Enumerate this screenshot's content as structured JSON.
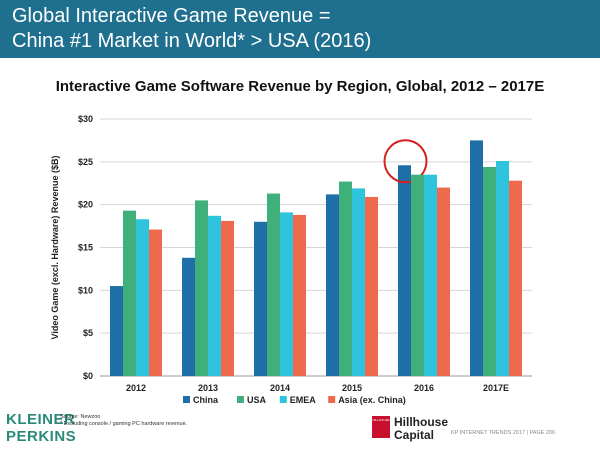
{
  "header": {
    "line1": "Global Interactive Game Revenue =",
    "line2": "China #1 Market in World* > USA (2016)"
  },
  "chart_data": {
    "type": "bar",
    "title": "Interactive Game Software Revenue by Region, Global, 2012 – 2017E",
    "xlabel": "",
    "ylabel": "Video Game (excl. Hardware) Revenue ($B)",
    "categories": [
      "2012",
      "2013",
      "2014",
      "2015",
      "2016",
      "2017E"
    ],
    "ylim": [
      0,
      30
    ],
    "yticks": [
      0,
      5,
      10,
      15,
      20,
      25,
      30
    ],
    "ytick_labels": [
      "$0",
      "$5",
      "$10",
      "$15",
      "$20",
      "$25",
      "$30"
    ],
    "grid": true,
    "legend_position": "bottom",
    "series": [
      {
        "name": "China",
        "color": "#1d6fa5",
        "values": [
          10.5,
          13.8,
          18.0,
          21.2,
          24.6,
          27.5
        ]
      },
      {
        "name": "USA",
        "color": "#3fb07a",
        "values": [
          19.3,
          20.5,
          21.3,
          22.7,
          23.5,
          24.4
        ]
      },
      {
        "name": "EMEA",
        "color": "#2ec4de",
        "values": [
          18.3,
          18.7,
          19.1,
          21.9,
          23.5,
          25.1
        ]
      },
      {
        "name": "Asia (ex. China)",
        "color": "#ef6a4c",
        "values": [
          17.1,
          18.1,
          18.8,
          20.9,
          22.0,
          22.8
        ]
      }
    ],
    "highlight": {
      "category": "2016",
      "series": "China",
      "color": "#d42020"
    }
  },
  "footer": {
    "logo_line1": "KLEINER",
    "logo_line2": "PERKINS",
    "source": "Source: Newzoo",
    "note": "* Excluding console / gaming PC hardware revenue.",
    "partner_line1": "Hillhouse",
    "partner_line2": "Capital",
    "partner_box": "HILLHOUSE",
    "report": "KP INTERNET TRENDS 2017  |  PAGE 206"
  }
}
